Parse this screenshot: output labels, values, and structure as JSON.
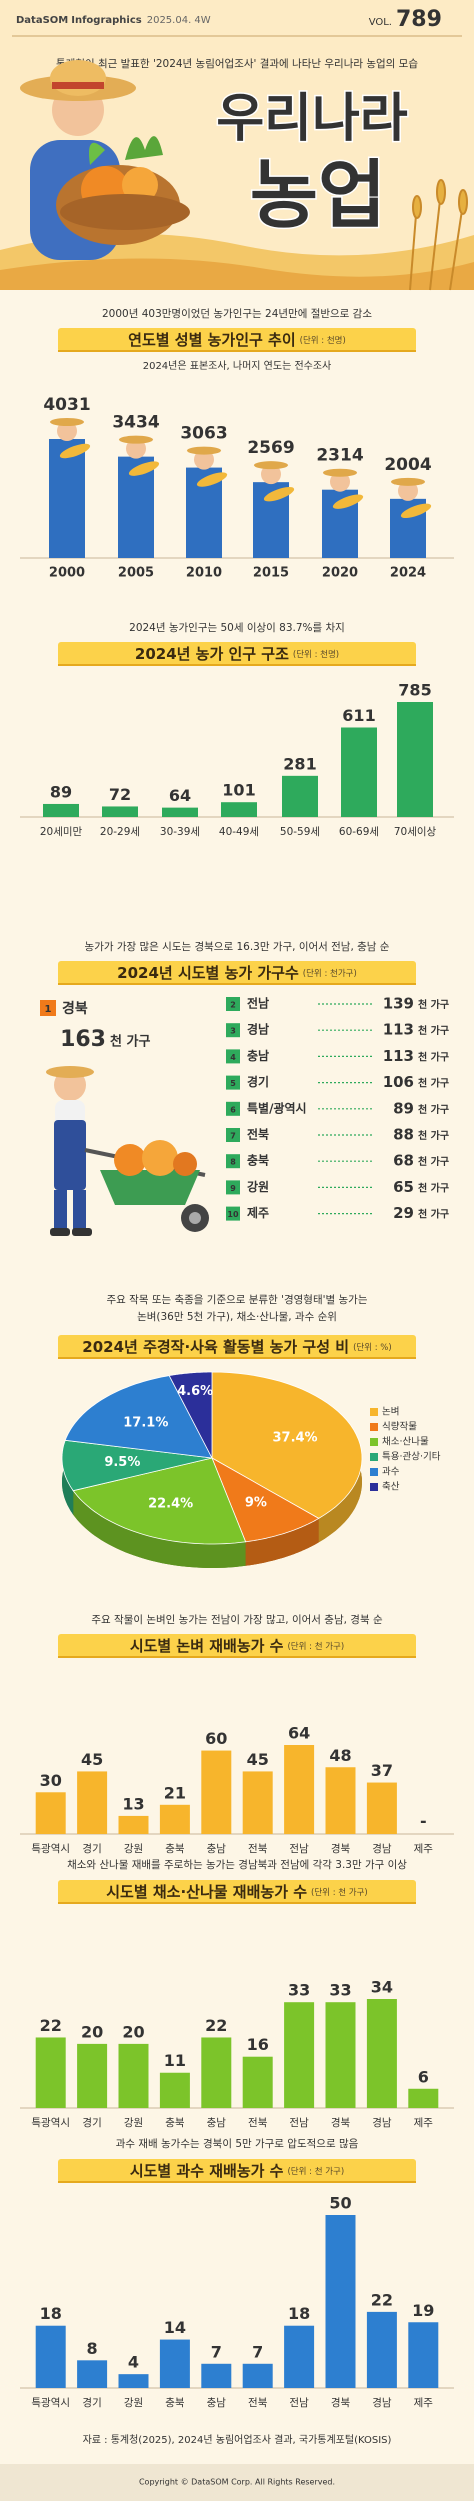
{
  "header": {
    "brand": "DataSOM",
    "series": "Infographics",
    "date": "2025.04. 4W",
    "vol_label": "VOL.",
    "vol": "789",
    "subtitle": "통계청이 최근 발표한 '2024년 농림어업조사' 결과에 나타난 우리나라 농업의 모습",
    "title_line1": "우리나라",
    "title_line2": "농업"
  },
  "chart_data": [
    {
      "type": "pictograph-bar",
      "lead": [
        "2000년 403만명이었던 농가인구는 24년만에 절반으로 감소"
      ],
      "title": "연도별 성별 농가인구 추이",
      "unit": "(단위 : 천명)",
      "note": "2024년은 표본조사, 나머지 연도는 전수조사",
      "categories": [
        "2000",
        "2005",
        "2010",
        "2015",
        "2020",
        "2024"
      ],
      "values": [
        4031,
        3434,
        3063,
        2569,
        2314,
        2004
      ],
      "color": "#2f6fc0"
    },
    {
      "type": "bar",
      "lead": [
        "2024년 농가인구는 50세 이상이 83.7%를 차지"
      ],
      "title": "2024년 농가 인구 구조",
      "unit": "(단위 : 천명)",
      "categories": [
        "20세미만",
        "20-29세",
        "30-39세",
        "40-49세",
        "50-59세",
        "60-69세",
        "70세이상"
      ],
      "values": [
        89,
        72,
        64,
        101,
        281,
        611,
        785
      ],
      "color": "#2eaa5c"
    },
    {
      "type": "ranking",
      "lead": [
        "농가가 가장 많은 시도는 경북으로 16.3만 가구, 이어서 전남, 충남 순"
      ],
      "title": "2024년 시도별 농가 가구수",
      "unit": "(단위 : 천가구)",
      "value_unit": "천 가구",
      "ranks": [
        "1",
        "2",
        "3",
        "4",
        "5",
        "6",
        "7",
        "8",
        "9",
        "10"
      ],
      "categories": [
        "경북",
        "전남",
        "경남",
        "충남",
        "경기",
        "특별/광역시",
        "전북",
        "충북",
        "강원",
        "제주"
      ],
      "values": [
        163,
        139,
        113,
        113,
        106,
        89,
        88,
        68,
        65,
        29
      ],
      "color": "#2eaa5c",
      "top_color": "#f07a1a"
    },
    {
      "type": "pie",
      "lead": [
        "주요 작목 또는 축종을 기준으로 분류한 '경영형태'별 농가는",
        "논벼(36만 5천 가구), 채소·산나물, 과수 순위"
      ],
      "title": "2024년 주경작·사육 활동별 농가 구성 비",
      "unit": "(단위 : %)",
      "categories": [
        "논벼",
        "식량작물",
        "채소·산나물",
        "특용·관상·기타",
        "과수",
        "축산"
      ],
      "values": [
        37.4,
        9,
        22.4,
        9.5,
        17.1,
        4.6
      ],
      "value_labels": [
        "37.4%",
        "9%",
        "22.4%",
        "9.5%",
        "17.1%",
        "4.6%"
      ],
      "colors": [
        "#f7b52c",
        "#f07a1a",
        "#7cc42a",
        "#2aa876",
        "#2d7fd0",
        "#2b2f9a"
      ]
    },
    {
      "type": "bar",
      "lead": [
        "주요 작물이 논벼인 농가는 전남이 가장 많고, 이어서 충남, 경북 순"
      ],
      "title": "시도별 논벼 재배농가 수",
      "unit": "(단위 : 천 가구)",
      "categories": [
        "특광역시",
        "경기",
        "강원",
        "충북",
        "충남",
        "전북",
        "전남",
        "경북",
        "경남",
        "제주"
      ],
      "values": [
        30,
        45,
        13,
        21,
        60,
        45,
        64,
        48,
        37,
        null
      ],
      "value_labels": [
        null,
        null,
        null,
        null,
        null,
        null,
        null,
        null,
        null,
        "-"
      ],
      "color": "#f7b52c"
    },
    {
      "type": "bar",
      "lead": [
        "채소와 산나물 재배를 주로하는 농가는 경남북과 전남에 각각 3.3만 가구 이상"
      ],
      "title": "시도별 채소·산나물 재배농가 수",
      "unit": "(단위 : 천 가구)",
      "categories": [
        "특광역시",
        "경기",
        "강원",
        "충북",
        "충남",
        "전북",
        "전남",
        "경북",
        "경남",
        "제주"
      ],
      "values": [
        22,
        20,
        20,
        11,
        22,
        16,
        33,
        33,
        34,
        6
      ],
      "color": "#7cc42a"
    },
    {
      "type": "bar",
      "lead": [
        "과수 재배 농가수는 경북이 5만 가구로 압도적으로 많음"
      ],
      "title": "시도별 과수 재배농가 수",
      "unit": "(단위 : 천 가구)",
      "categories": [
        "특광역시",
        "경기",
        "강원",
        "충북",
        "충남",
        "전북",
        "전남",
        "경북",
        "경남",
        "제주"
      ],
      "values": [
        18,
        8,
        4,
        14,
        7,
        7,
        18,
        50,
        22,
        19
      ],
      "color": "#2d7fd0"
    }
  ],
  "footer": {
    "source": "자료 : 통계청(2025), 2024년 농림어업조사 결과, 국가통계포털(KOSIS)",
    "copyright": "Copyright © DataSOM Corp. All Rights Reserved."
  }
}
